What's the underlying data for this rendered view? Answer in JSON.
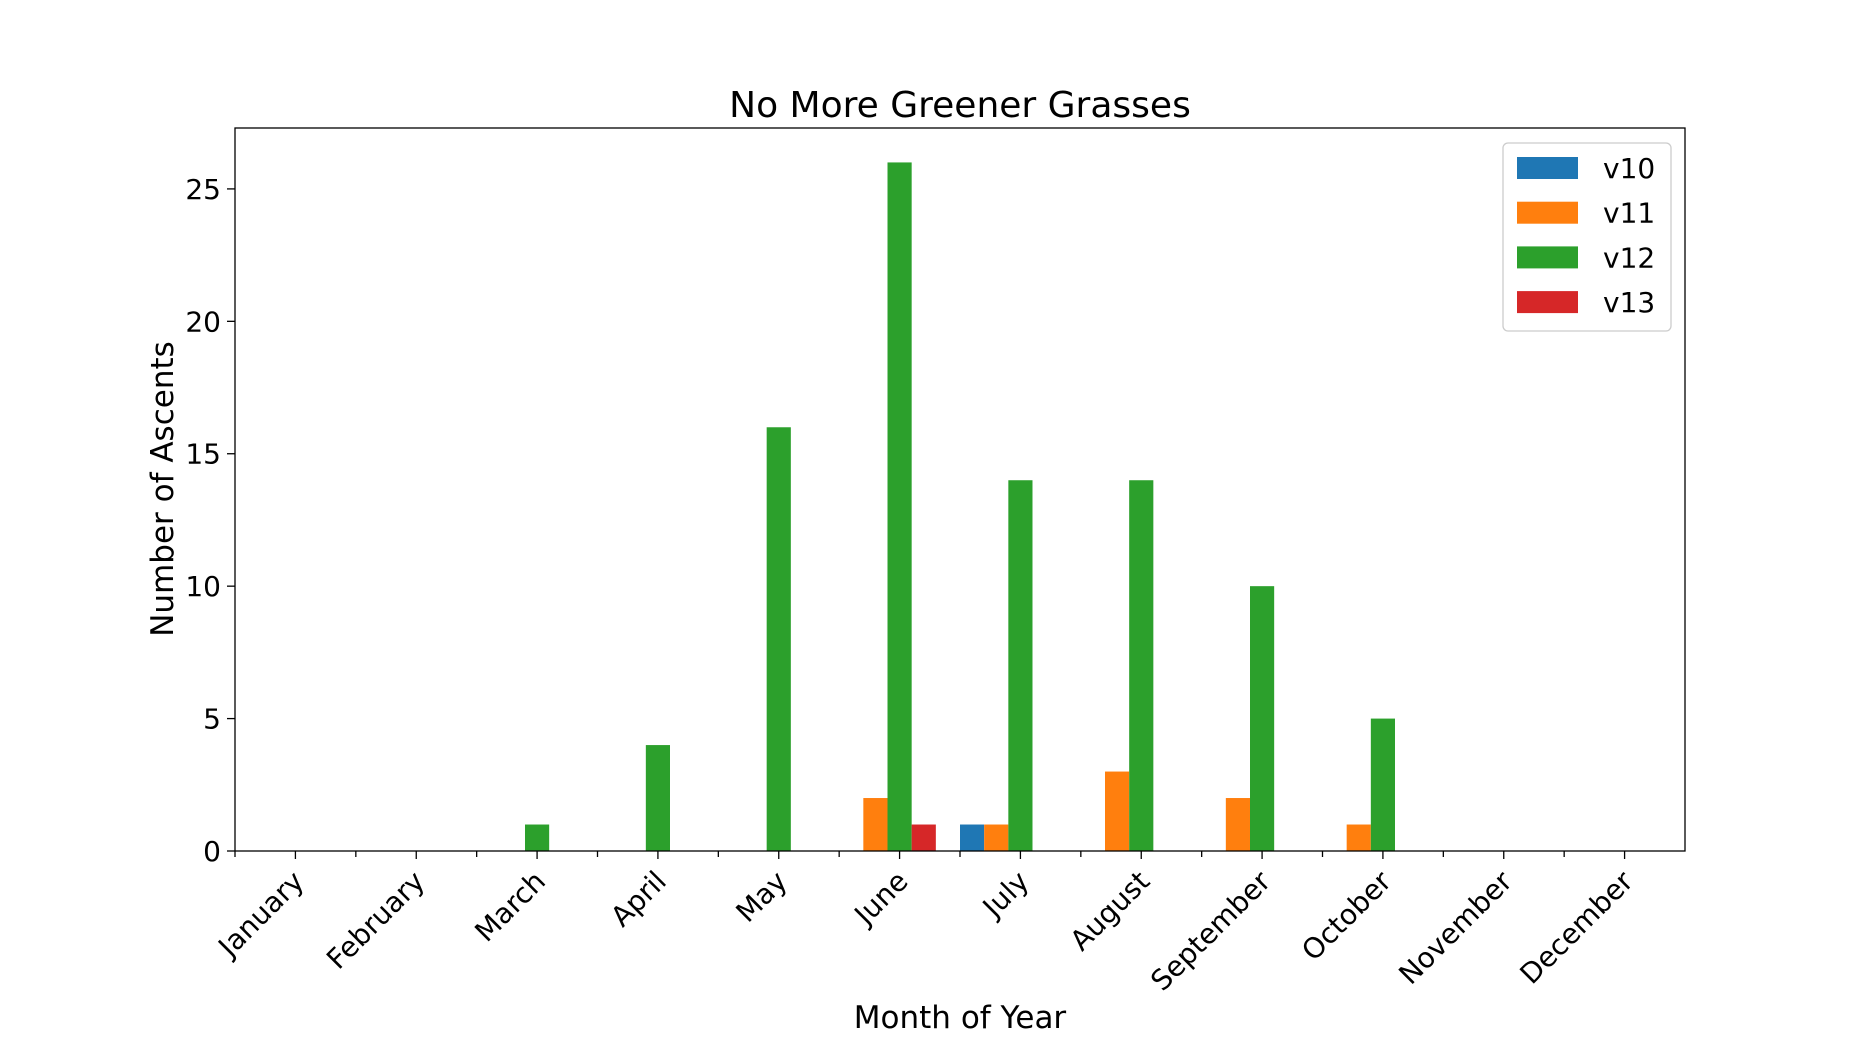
{
  "chart_data": {
    "type": "bar",
    "title": "No More Greener Grasses",
    "xlabel": "Month of Year",
    "ylabel": "Number of Ascents",
    "categories": [
      "January",
      "February",
      "March",
      "April",
      "May",
      "June",
      "July",
      "August",
      "September",
      "October",
      "November",
      "December"
    ],
    "series": [
      {
        "name": "v10",
        "color": "#1f77b4",
        "values": [
          0,
          0,
          0,
          0,
          0,
          0,
          1,
          0,
          0,
          0,
          0,
          0
        ]
      },
      {
        "name": "v11",
        "color": "#ff7f0e",
        "values": [
          0,
          0,
          0,
          0,
          0,
          2,
          1,
          3,
          2,
          1,
          0,
          0
        ]
      },
      {
        "name": "v12",
        "color": "#2ca02c",
        "values": [
          0,
          0,
          1,
          4,
          16,
          26,
          14,
          14,
          10,
          5,
          0,
          0
        ]
      },
      {
        "name": "v13",
        "color": "#d62728",
        "values": [
          0,
          0,
          0,
          0,
          0,
          1,
          0,
          0,
          0,
          0,
          0,
          0
        ]
      }
    ],
    "ylim": [
      0,
      27.3
    ],
    "yticks": [
      0,
      5,
      10,
      15,
      20,
      25
    ],
    "grid": false,
    "legend_position": "top-right"
  }
}
